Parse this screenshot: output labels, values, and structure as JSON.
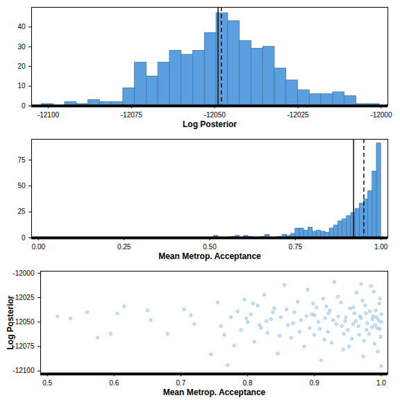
{
  "chart_data": [
    {
      "type": "histogram",
      "x_label": "Log Posterior",
      "color": "#5aa0e0",
      "bins": [
        -12102,
        -12098.5,
        -12095,
        -12091.5,
        -12088,
        -12084.5,
        -12081,
        -12077.5,
        -12074,
        -12070.5,
        -12067,
        -12063.5,
        -12060,
        -12056.5,
        -12053,
        -12049.5,
        -12046,
        -12042.5,
        -12039,
        -12035.5,
        -12032,
        -12028.5,
        -12025,
        -12021.5,
        -12018,
        -12014.5,
        -12011,
        -12007.5,
        -12004,
        -12000.5
      ],
      "values": [
        1,
        0,
        2,
        1,
        3,
        2,
        2,
        9,
        22,
        15,
        22,
        28,
        26,
        28,
        37,
        47,
        43,
        33,
        29,
        30,
        19,
        13,
        8,
        6,
        6,
        7,
        5,
        1,
        1
      ],
      "reference_lines": [
        {
          "value": -12049,
          "line_style": "solid"
        },
        {
          "value": -12048,
          "line_style": "dashed"
        }
      ],
      "xlim": [
        -12105,
        -11998
      ],
      "xticks": [
        -12100,
        -12075,
        -12050,
        -12025,
        -12000
      ],
      "ylim": [
        0,
        50
      ],
      "yticks": [
        0,
        10,
        20,
        30,
        40
      ]
    },
    {
      "type": "histogram",
      "x_label": "Mean Metrop. Acceptance",
      "color": "#5aa0e0",
      "bins": [
        0.5,
        0.5125,
        0.525,
        0.5375,
        0.55,
        0.5625,
        0.575,
        0.5875,
        0.6,
        0.6125,
        0.625,
        0.6375,
        0.65,
        0.6625,
        0.675,
        0.6875,
        0.7,
        0.7125,
        0.725,
        0.7375,
        0.75,
        0.7625,
        0.775,
        0.7875,
        0.8,
        0.8125,
        0.825,
        0.8375,
        0.85,
        0.8625,
        0.875,
        0.8875,
        0.9,
        0.9125,
        0.925,
        0.9375,
        0.95,
        0.9625,
        0.975,
        0.9875,
        1.0
      ],
      "values": [
        0,
        2,
        0,
        0,
        0,
        1,
        2,
        0,
        2,
        1,
        0,
        0,
        1,
        3,
        0,
        0,
        1,
        3,
        2,
        4,
        9,
        9,
        7,
        10,
        6,
        7,
        6,
        5,
        9,
        12,
        16,
        18,
        21,
        24,
        28,
        33,
        37,
        45,
        64,
        91
      ],
      "reference_lines": [
        {
          "value": 0.92,
          "line_style": "solid"
        },
        {
          "value": 0.95,
          "line_style": "dashed"
        }
      ],
      "xlim": [
        -0.02,
        1.02
      ],
      "xticks": [
        {
          "value": 0,
          "label": "0.00"
        },
        0.25,
        {
          "value": 0.5,
          "label": "0.50"
        },
        0.75,
        {
          "value": 1,
          "label": "1.00"
        }
      ],
      "ylim": [
        0,
        95
      ],
      "yticks": [
        0,
        25,
        50,
        75
      ]
    },
    {
      "type": "scatter",
      "x_label": "Mean Metrop. Acceptance",
      "y_label": "Log Posterior",
      "color": "#5aa0e0",
      "x": [
        0.515,
        0.535,
        0.56,
        0.575,
        0.595,
        0.605,
        0.615,
        0.65,
        0.655,
        0.68,
        0.705,
        0.715,
        0.72,
        0.745,
        0.755,
        0.76,
        0.765,
        0.77,
        0.775,
        0.78,
        0.785,
        0.79,
        0.795,
        0.8,
        0.805,
        0.81,
        0.815,
        0.82,
        0.825,
        0.83,
        0.835,
        0.84,
        0.845,
        0.85,
        0.855,
        0.86,
        0.865,
        0.87,
        0.875,
        0.88,
        0.885,
        0.89,
        0.893,
        0.896,
        0.9,
        0.903,
        0.906,
        0.91,
        0.913,
        0.916,
        0.92,
        0.923,
        0.926,
        0.93,
        0.933,
        0.936,
        0.94,
        0.943,
        0.946,
        0.95,
        0.953,
        0.956,
        0.96,
        0.963,
        0.966,
        0.97,
        0.973,
        0.976,
        0.979,
        0.982,
        0.985,
        0.988,
        0.99,
        0.992,
        0.994,
        0.996,
        0.998,
        0.999,
        1.0,
        1.0,
        1.0,
        0.997,
        0.995,
        0.991,
        0.987,
        0.983,
        0.978,
        0.972,
        0.967,
        0.962,
        0.958,
        0.952,
        0.947,
        0.941,
        0.935,
        0.928,
        0.921,
        0.915,
        0.908,
        0.898,
        0.888,
        0.878,
        0.868,
        0.858,
        0.848,
        0.838,
        0.828,
        0.818,
        0.808,
        0.798,
        0.958,
        0.968,
        0.977,
        0.986,
        0.993,
        0.998,
        0.989,
        0.974,
        0.944,
        0.918,
        0.9,
        0.97
      ],
      "y": [
        -12044,
        -12046,
        -12040,
        -12066,
        -12062,
        -12041,
        -12034,
        -12038,
        -12048,
        -12062,
        -12037,
        -12043,
        -12052,
        -12083,
        -12030,
        -12054,
        -12063,
        -12094,
        -12045,
        -12074,
        -12039,
        -12058,
        -12027,
        -12050,
        -12042,
        -12070,
        -12033,
        -12056,
        -12022,
        -12061,
        -12047,
        -12036,
        -12082,
        -12045,
        -12012,
        -12053,
        -12066,
        -12040,
        -12029,
        -12048,
        -12075,
        -12017,
        -12056,
        -12042,
        -12063,
        -12035,
        -12050,
        -12089,
        -12026,
        -12046,
        -12060,
        -12038,
        -12071,
        -12009,
        -12052,
        -12044,
        -12030,
        -12078,
        -12049,
        -12058,
        -12036,
        -12067,
        -12041,
        -12020,
        -12054,
        -12046,
        -12085,
        -12033,
        -12051,
        -12062,
        -12013,
        -12044,
        -12072,
        -12038,
        -12056,
        -12048,
        -12026,
        -12065,
        -12050,
        -12042,
        -12095,
        -12031,
        -12080,
        -12053,
        -12047,
        -12039,
        -12058,
        -12028,
        -12063,
        -12049,
        -12035,
        -12075,
        -12045,
        -12054,
        -12024,
        -12048,
        -12041,
        -12068,
        -12057,
        -12031,
        -12044,
        -12060,
        -12051,
        -12037,
        -12064,
        -12040,
        -12049,
        -12053,
        -12031,
        -12046,
        -12052,
        -12044,
        -12041,
        -12055,
        -12045,
        -12057,
        -12019,
        -12069,
        -12062,
        -12034,
        -12043,
        -12011
      ],
      "xlim": [
        0.49,
        1.01
      ],
      "xticks": [
        0.5,
        0.6,
        0.7,
        0.8,
        0.9,
        {
          "value": 1,
          "label": "1.0"
        }
      ],
      "ylim": [
        -12103,
        -11998
      ],
      "yticks": [
        -12100,
        -12075,
        -12050,
        -12025,
        -12000
      ]
    }
  ]
}
